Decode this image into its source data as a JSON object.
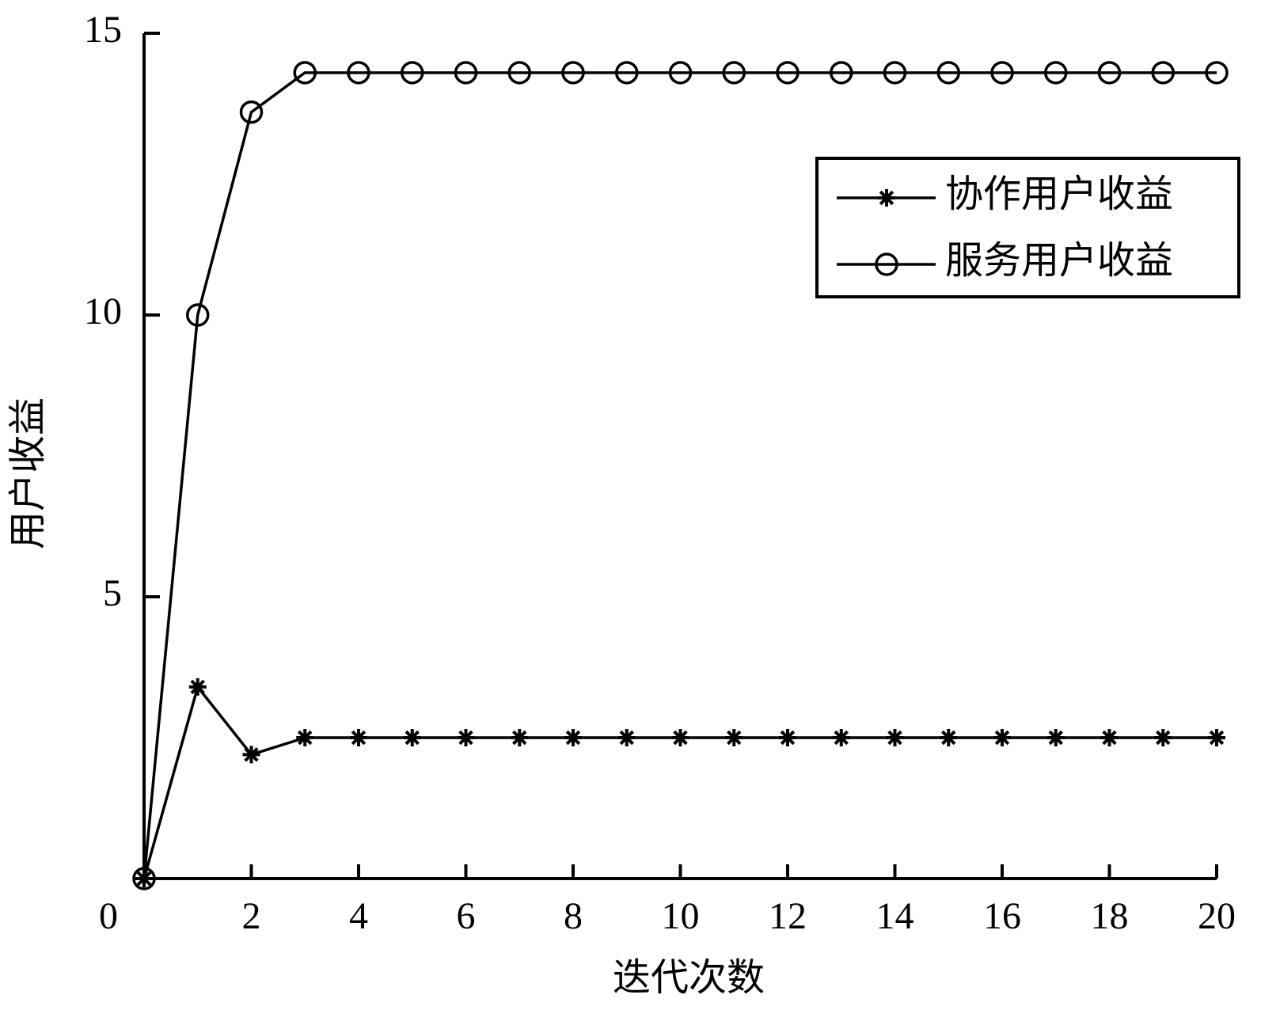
{
  "chart_data": {
    "type": "line",
    "x_label": "迭代次数",
    "y_label": "用户收益",
    "x": [
      0,
      1,
      2,
      3,
      4,
      5,
      6,
      7,
      8,
      9,
      10,
      11,
      12,
      13,
      14,
      15,
      16,
      17,
      18,
      19,
      20
    ],
    "series": [
      {
        "name": "协作用户收益",
        "color": "#000000",
        "marker": "star",
        "values": [
          0,
          3.4,
          2.2,
          2.5,
          2.5,
          2.5,
          2.5,
          2.5,
          2.5,
          2.5,
          2.5,
          2.5,
          2.5,
          2.5,
          2.5,
          2.5,
          2.5,
          2.5,
          2.5,
          2.5,
          2.5
        ]
      },
      {
        "name": "服务用户收益",
        "color": "#000000",
        "marker": "circle",
        "values": [
          0,
          10,
          13.6,
          14.3,
          14.3,
          14.3,
          14.3,
          14.3,
          14.3,
          14.3,
          14.3,
          14.3,
          14.3,
          14.3,
          14.3,
          14.3,
          14.3,
          14.3,
          14.3,
          14.3,
          14.3
        ]
      }
    ],
    "xlim": [
      0,
      20
    ],
    "ylim": [
      0,
      15
    ],
    "xticks": [
      0,
      2,
      4,
      6,
      8,
      10,
      12,
      14,
      16,
      18,
      20
    ],
    "yticks": [
      5,
      10,
      15
    ],
    "legend": "upper right"
  }
}
